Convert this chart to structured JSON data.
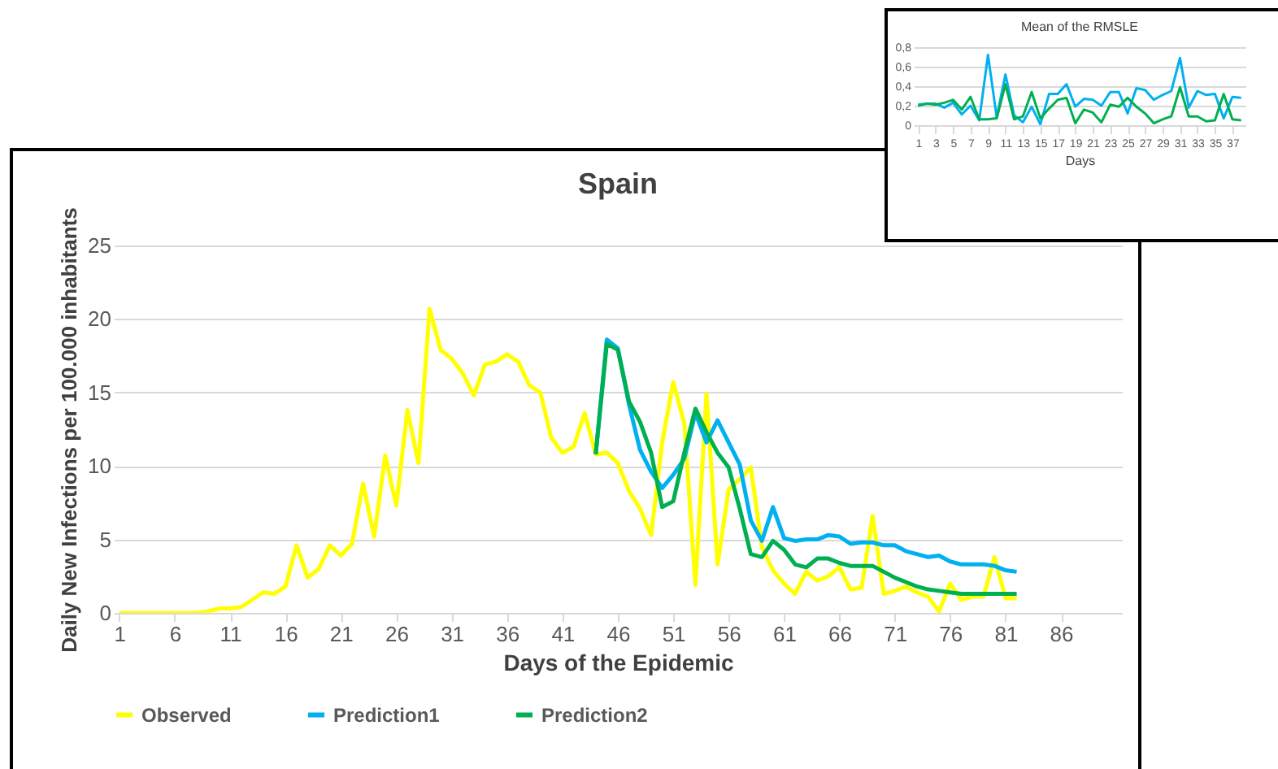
{
  "chart_data": [
    {
      "type": "line",
      "title": "Spain",
      "xlabel": "Days of the Epidemic",
      "ylabel": "Daily New Infections per 100.000 inhabitants",
      "xlim": [
        0.5,
        91.5
      ],
      "xticks": [
        1,
        6,
        11,
        16,
        21,
        26,
        31,
        36,
        41,
        46,
        51,
        56,
        61,
        66,
        71,
        76,
        81,
        86
      ],
      "ylim": [
        0,
        25
      ],
      "yticks": [
        0,
        5,
        10,
        15,
        20,
        25
      ],
      "grid": "y",
      "legend": "bottom",
      "series": [
        {
          "name": "Observed",
          "color": "#ffff00",
          "x": [
            1,
            2,
            3,
            4,
            5,
            6,
            7,
            8,
            9,
            10,
            11,
            12,
            13,
            14,
            15,
            16,
            17,
            18,
            19,
            20,
            21,
            22,
            23,
            24,
            25,
            26,
            27,
            28,
            29,
            30,
            31,
            32,
            33,
            34,
            35,
            36,
            37,
            38,
            39,
            40,
            41,
            42,
            43,
            44,
            45,
            46,
            47,
            48,
            49,
            50,
            51,
            52,
            53,
            54,
            55,
            56,
            57,
            58,
            59,
            60,
            61,
            62,
            63,
            64,
            65,
            66,
            67,
            68,
            69,
            70,
            71,
            72,
            73,
            74,
            75,
            76,
            77,
            78,
            79,
            80,
            81,
            82
          ],
          "values": [
            0,
            0,
            0,
            0,
            0,
            0,
            0,
            0,
            0.1,
            0.3,
            0.3,
            0.4,
            0.9,
            1.4,
            1.3,
            1.8,
            4.6,
            2.4,
            3.0,
            4.6,
            3.9,
            4.7,
            8.8,
            5.2,
            10.7,
            7.3,
            13.8,
            10.2,
            20.7,
            17.9,
            17.3,
            16.3,
            14.8,
            16.9,
            17.1,
            17.6,
            17.1,
            15.5,
            15.0,
            11.9,
            10.9,
            11.3,
            13.6,
            10.8,
            10.9,
            10.2,
            8.3,
            7.1,
            5.3,
            11.6,
            15.7,
            12.9,
            1.9,
            14.9,
            3.3,
            8.4,
            9.1,
            9.9,
            4.5,
            2.9,
            2.0,
            1.3,
            2.8,
            2.2,
            2.5,
            3.1,
            1.6,
            1.7,
            6.6,
            1.3,
            1.5,
            1.8,
            1.4,
            1.1,
            0.1,
            2.0,
            0.9,
            1.1,
            1.1,
            3.8,
            1.0,
            1.0
          ]
        },
        {
          "name": "Prediction1",
          "color": "#00b0f0",
          "x": [
            44,
            45,
            46,
            47,
            48,
            49,
            50,
            51,
            52,
            53,
            54,
            55,
            56,
            57,
            58,
            59,
            60,
            61,
            62,
            63,
            64,
            65,
            66,
            67,
            68,
            69,
            70,
            71,
            72,
            73,
            74,
            75,
            76,
            77,
            78,
            79,
            80,
            81,
            82
          ],
          "values": [
            10.8,
            18.6,
            18.0,
            14.2,
            11.1,
            9.6,
            8.5,
            9.4,
            10.5,
            13.6,
            11.6,
            13.1,
            11.6,
            10.1,
            6.3,
            4.9,
            7.2,
            5.1,
            4.9,
            5.0,
            5.0,
            5.3,
            5.2,
            4.7,
            4.8,
            4.8,
            4.6,
            4.6,
            4.2,
            4.0,
            3.8,
            3.9,
            3.5,
            3.3,
            3.3,
            3.3,
            3.2,
            2.9,
            2.8
          ]
        },
        {
          "name": "Prediction2",
          "color": "#00b050",
          "x": [
            44,
            45,
            46,
            47,
            48,
            49,
            50,
            51,
            52,
            53,
            54,
            55,
            56,
            57,
            58,
            59,
            60,
            61,
            62,
            63,
            64,
            65,
            66,
            67,
            68,
            69,
            70,
            71,
            72,
            73,
            74,
            75,
            76,
            77,
            78,
            79,
            80,
            81,
            82
          ],
          "values": [
            10.8,
            18.3,
            17.9,
            14.4,
            13.0,
            10.9,
            7.2,
            7.6,
            10.9,
            13.9,
            12.3,
            10.9,
            9.9,
            7.1,
            4.0,
            3.8,
            4.9,
            4.3,
            3.3,
            3.1,
            3.7,
            3.7,
            3.4,
            3.2,
            3.2,
            3.2,
            2.8,
            2.4,
            2.1,
            1.8,
            1.6,
            1.5,
            1.4,
            1.3,
            1.3,
            1.3,
            1.3,
            1.3,
            1.3
          ]
        }
      ]
    },
    {
      "type": "line",
      "title": "Mean of the RMSLE",
      "xlabel": "Days",
      "xlim": [
        0.5,
        38.5
      ],
      "xticks": [
        1,
        3,
        5,
        7,
        9,
        11,
        13,
        15,
        17,
        19,
        21,
        23,
        25,
        27,
        29,
        31,
        33,
        35,
        37
      ],
      "ylim": [
        0,
        0.8
      ],
      "yticks": [
        0,
        {
          "value": 0.2,
          "label": "0,2"
        },
        {
          "value": 0.4,
          "label": "0,4"
        },
        {
          "value": 0.6,
          "label": "0,6"
        },
        {
          "value": 0.8,
          "label": "0,8"
        }
      ],
      "grid": "y",
      "series": [
        {
          "color": "#00b0f0",
          "x": [
            1,
            2,
            3,
            4,
            5,
            6,
            7,
            8,
            9,
            10,
            11,
            12,
            13,
            14,
            15,
            16,
            17,
            18,
            19,
            20,
            21,
            22,
            23,
            24,
            25,
            26,
            27,
            28,
            29,
            30,
            31,
            32,
            33,
            34,
            35,
            36,
            37,
            38
          ],
          "values": [
            0.21,
            0.22,
            0.22,
            0.18,
            0.23,
            0.11,
            0.2,
            0.05,
            0.72,
            0.08,
            0.52,
            0.1,
            0.03,
            0.19,
            0.01,
            0.32,
            0.32,
            0.42,
            0.19,
            0.27,
            0.26,
            0.2,
            0.34,
            0.34,
            0.12,
            0.38,
            0.36,
            0.26,
            0.31,
            0.35,
            0.69,
            0.18,
            0.35,
            0.31,
            0.32,
            0.07,
            0.29,
            0.28
          ]
        },
        {
          "color": "#00b050",
          "x": [
            1,
            2,
            3,
            4,
            5,
            6,
            7,
            8,
            9,
            10,
            11,
            12,
            13,
            14,
            15,
            16,
            17,
            18,
            19,
            20,
            21,
            22,
            23,
            24,
            25,
            26,
            27,
            28,
            29,
            30,
            31,
            32,
            33,
            34,
            35,
            36,
            37,
            38
          ],
          "values": [
            0.2,
            0.22,
            0.21,
            0.23,
            0.26,
            0.16,
            0.29,
            0.06,
            0.06,
            0.07,
            0.42,
            0.06,
            0.09,
            0.34,
            0.07,
            0.17,
            0.26,
            0.28,
            0.02,
            0.16,
            0.13,
            0.03,
            0.21,
            0.19,
            0.28,
            0.19,
            0.12,
            0.02,
            0.06,
            0.09,
            0.39,
            0.09,
            0.09,
            0.04,
            0.05,
            0.32,
            0.06,
            0.05
          ]
        }
      ]
    }
  ]
}
